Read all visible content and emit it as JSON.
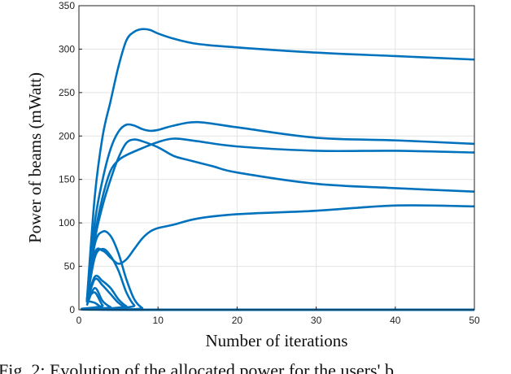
{
  "chart_data": {
    "type": "line",
    "xlabel": "Number of iterations",
    "ylabel": "Power of beams (mWatt)",
    "xlim": [
      0,
      50
    ],
    "ylim": [
      0,
      350
    ],
    "xticks": [
      0,
      10,
      20,
      30,
      40,
      50
    ],
    "yticks": [
      0,
      50,
      100,
      150,
      200,
      250,
      300,
      350
    ],
    "grid": true,
    "line_color": "#0072BD",
    "series": [
      {
        "x": [
          1,
          2,
          3,
          4,
          5,
          6,
          7,
          8,
          9,
          10,
          12,
          15,
          20,
          30,
          40,
          50
        ],
        "y": [
          10,
          130,
          200,
          240,
          280,
          310,
          320,
          323,
          322,
          318,
          312,
          306,
          302,
          296,
          292,
          288
        ]
      },
      {
        "x": [
          1,
          2,
          3,
          4,
          5,
          6,
          7,
          8,
          9,
          10,
          12,
          15,
          20,
          30,
          40,
          50
        ],
        "y": [
          10,
          100,
          150,
          185,
          205,
          213,
          212,
          208,
          206,
          207,
          212,
          216,
          210,
          198,
          195,
          191
        ]
      },
      {
        "x": [
          1,
          2,
          3,
          4,
          5,
          6,
          7,
          8,
          10,
          12,
          14,
          17,
          20,
          30,
          40,
          50
        ],
        "y": [
          10,
          80,
          120,
          150,
          175,
          192,
          196,
          194,
          187,
          177,
          172,
          165,
          158,
          145,
          140,
          136
        ]
      },
      {
        "x": [
          1,
          2,
          3,
          4,
          5,
          6,
          8,
          10,
          12,
          15,
          20,
          30,
          40,
          50
        ],
        "y": [
          10,
          85,
          130,
          160,
          172,
          178,
          186,
          193,
          197,
          194,
          188,
          183,
          183,
          181
        ]
      },
      {
        "x": [
          1,
          2,
          3,
          4,
          5,
          6,
          7,
          8,
          9,
          10,
          12,
          15,
          20,
          30,
          40,
          50
        ],
        "y": [
          10,
          65,
          68,
          60,
          53,
          58,
          70,
          82,
          90,
          94,
          98,
          105,
          110,
          114,
          120,
          119
        ]
      },
      {
        "x": [
          1,
          2,
          3,
          4,
          5,
          6,
          7,
          8,
          9,
          50
        ],
        "y": [
          10,
          75,
          90,
          85,
          65,
          35,
          12,
          2,
          0,
          0
        ]
      },
      {
        "x": [
          1,
          2,
          3,
          4,
          5,
          6,
          7,
          8,
          50
        ],
        "y": [
          10,
          60,
          70,
          62,
          45,
          20,
          5,
          0,
          0
        ]
      },
      {
        "x": [
          1,
          2,
          3,
          4,
          5,
          6,
          7,
          50
        ],
        "y": [
          10,
          38,
          33,
          25,
          12,
          4,
          0,
          0
        ]
      },
      {
        "x": [
          1,
          2,
          3,
          4,
          5,
          6,
          7,
          50
        ],
        "y": [
          8,
          35,
          28,
          18,
          8,
          2,
          0,
          0
        ]
      },
      {
        "x": [
          1,
          2,
          3,
          4,
          5,
          50
        ],
        "y": [
          5,
          25,
          10,
          3,
          0,
          0
        ]
      },
      {
        "x": [
          1,
          2,
          3,
          4,
          50
        ],
        "y": [
          12,
          20,
          5,
          0,
          0
        ]
      },
      {
        "x": [
          1,
          2,
          3,
          4,
          50
        ],
        "y": [
          10,
          8,
          2,
          0,
          0
        ]
      }
    ]
  },
  "caption": "Fig. 2: Evolution of the allocated power for the users' b"
}
